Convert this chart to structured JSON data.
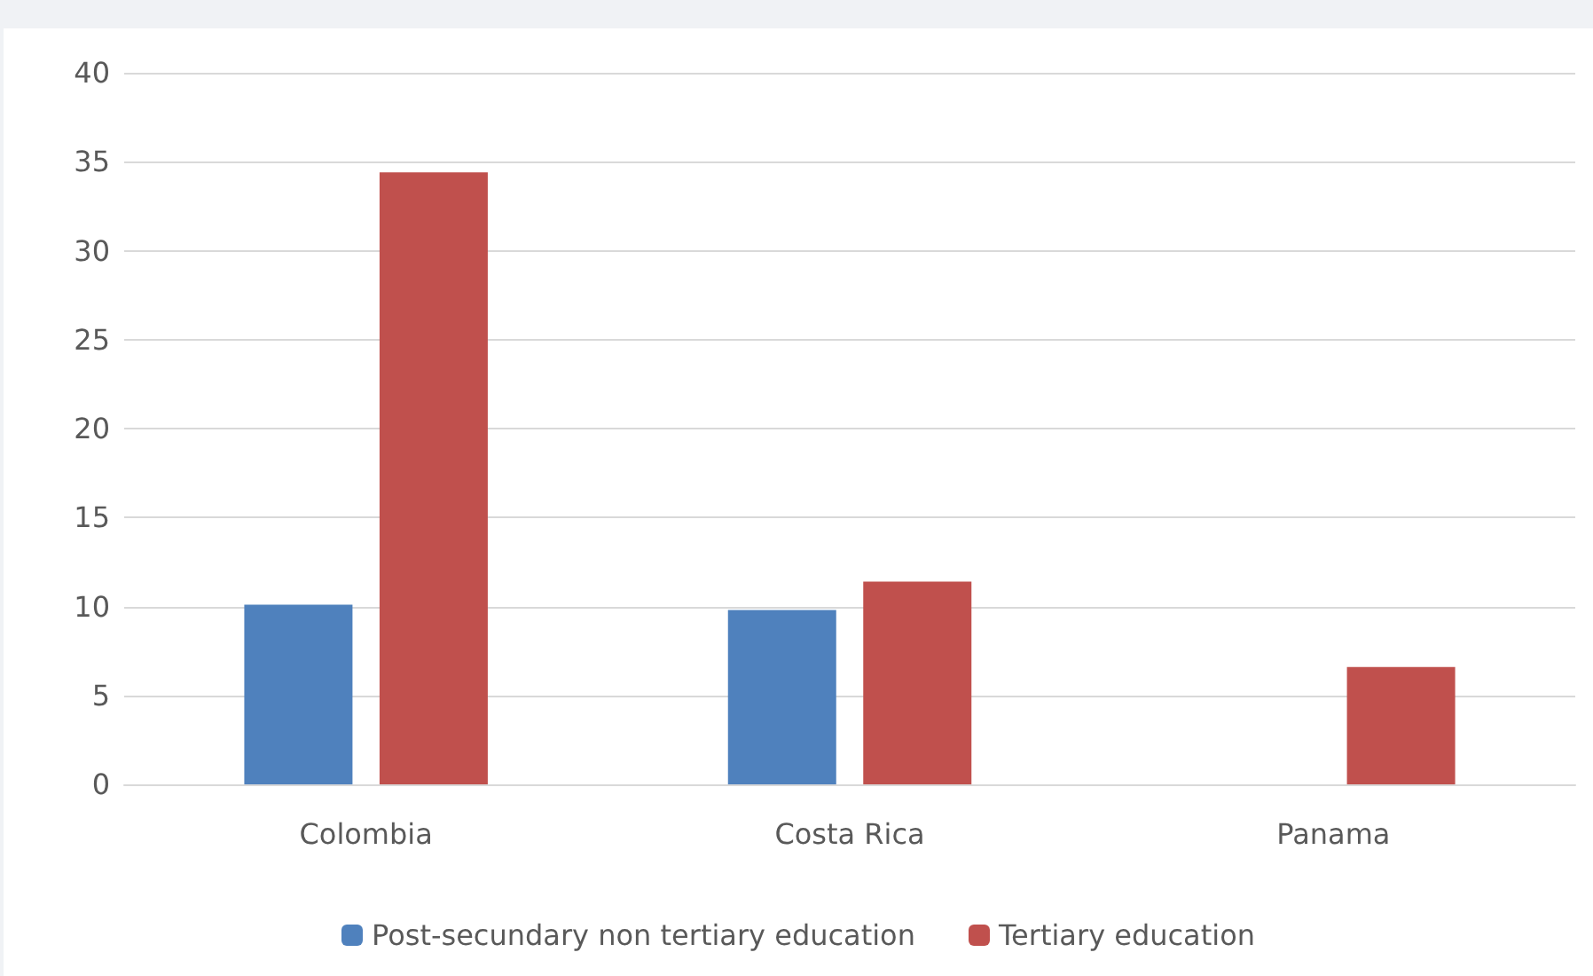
{
  "chart_data": {
    "type": "bar",
    "categories": [
      "Colombia",
      "Costa Rica",
      "Panama"
    ],
    "series": [
      {
        "name": "Post-secundary non tertiary education",
        "color": "#4f81bd",
        "values": [
          10.1,
          9.8,
          null
        ]
      },
      {
        "name": "Tertiary education",
        "color": "#c0504d",
        "values": [
          34.4,
          11.4,
          6.6
        ]
      }
    ],
    "ylim": [
      0,
      40
    ],
    "yticks": [
      0,
      5,
      10,
      15,
      20,
      25,
      30,
      35,
      40
    ],
    "grid": "y",
    "legend": "bottom"
  }
}
